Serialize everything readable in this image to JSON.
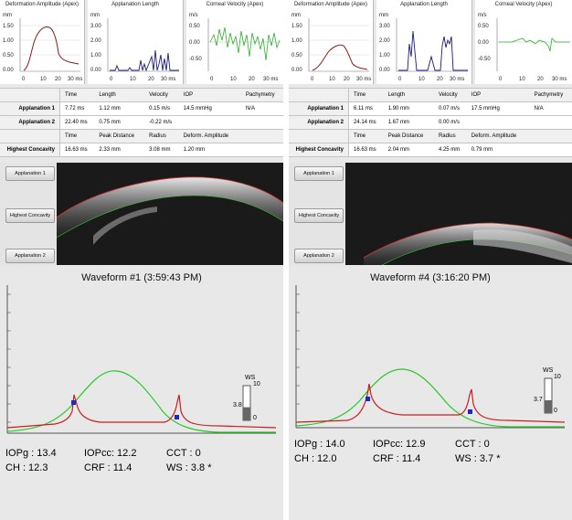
{
  "minigraphs": {
    "deformation": {
      "title": "Deformation Amplitude (Apex)",
      "unit": "mm",
      "yticks": [
        "1.50",
        "1.00",
        "0.50",
        "0.00"
      ],
      "xticks": [
        "0",
        "10",
        "20",
        "30 ms"
      ]
    },
    "applanation": {
      "title": "Applanation Length",
      "unit": "mm",
      "yticks": [
        "3.00",
        "2.00",
        "1.00",
        "0.00"
      ],
      "xticks": [
        "0",
        "10",
        "20",
        "30 ms"
      ]
    },
    "velocity": {
      "title": "Corneal Velocity (Apex)",
      "unit": "m/s",
      "yticks": [
        "0.50",
        "0.00",
        "-0.50"
      ],
      "xticks": [
        "0",
        "10",
        "20",
        "30 ms"
      ]
    }
  },
  "table": {
    "header1": [
      "Time",
      "Length",
      "Velocity",
      "IOP",
      "Pachymetry"
    ],
    "header2": [
      "Time",
      "Peak Distance",
      "Radius",
      "Deform. Amplitude"
    ],
    "row_labels": {
      "appl1": "Applanation 1",
      "appl2": "Applanation 2",
      "hc": "Highest Concavity"
    }
  },
  "buttons": {
    "appl1": "Applanation 1",
    "hc": "Highest Concavity",
    "appl2": "Applanation 2"
  },
  "left": {
    "appl1": [
      "7.72 ms",
      "1.12 mm",
      "0.15 m/s",
      "14.5 mmHg",
      "N/A"
    ],
    "appl2": [
      "22.40 ms",
      "0.75 mm",
      "-0.22 m/s"
    ],
    "hc": [
      "16.63 ms",
      "2.33 mm",
      "3.08 mm",
      "1.20 mm"
    ],
    "waveform_title": "Waveform #1 (3:59:43 PM)",
    "ws_label": "WS",
    "ws_top": "10",
    "ws_value": "3.8",
    "ws_bottom": "0",
    "ws_level": 0.38,
    "readout": {
      "iopg": "IOPg : 13.4",
      "iopcc": "IOPcc:  12.2",
      "cct": "CCT : 0",
      "ch": "CH    : 12.3",
      "crf": "CRF    : 11.4",
      "ws": "WS  : 3.8 *"
    }
  },
  "right": {
    "appl1": [
      "6.11 ms",
      "1.90 mm",
      "0.07 m/s",
      "17.5 mmHg",
      "N/A"
    ],
    "appl2": [
      "24.14 ms",
      "1.67 mm",
      "0.00 m/s"
    ],
    "hc": [
      "16.63 ms",
      "2.04 mm",
      "4.25 mm",
      "0.79 mm"
    ],
    "waveform_title": "Waveform #4 (3:16:20 PM)",
    "ws_label": "WS",
    "ws_top": "10",
    "ws_value": "3.7",
    "ws_bottom": "0",
    "ws_level": 0.37,
    "readout": {
      "iopg": "IOPg : 14.0",
      "iopcc": "IOPcc:  12.9",
      "cct": "CCT : 0",
      "ch": "CH    : 12.0",
      "crf": "CRF    : 11.4",
      "ws": "WS  : 3.7 *"
    }
  },
  "colors": {
    "deformation": "#8b1a1a",
    "applanation": "#1a1a7a",
    "velocity": "#2bb02b",
    "pressure": "#28c828",
    "signal": "#c81e1e",
    "marker": "#1a2ac8"
  }
}
